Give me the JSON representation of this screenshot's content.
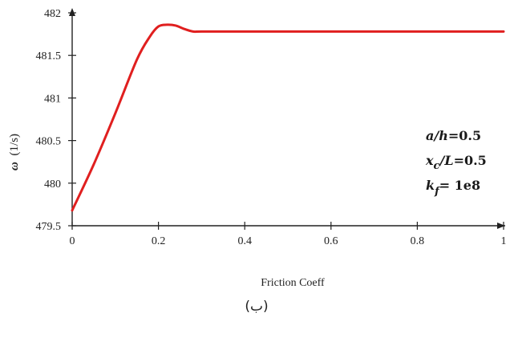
{
  "chart_data": {
    "type": "line",
    "xlabel": "Friction Coeff",
    "ylabel": {
      "symbol": "ω",
      "unit": "(1/s)"
    },
    "xlim": [
      0,
      1
    ],
    "ylim": [
      479.5,
      482
    ],
    "xticks": [
      "0",
      "0.2",
      "0.4",
      "0.6",
      "0.8",
      "1"
    ],
    "xtick_values": [
      0,
      0.2,
      0.4,
      0.6,
      0.8,
      1
    ],
    "yticks": [
      "479.5",
      "480",
      "480.5",
      "481",
      "481.5",
      "482"
    ],
    "ytick_values": [
      479.5,
      480,
      480.5,
      481,
      481.5,
      482
    ],
    "grid": false,
    "series": [
      {
        "color": "#e01f1f",
        "x": [
          0,
          0.05,
          0.1,
          0.15,
          0.18,
          0.2,
          0.22,
          0.24,
          0.26,
          0.28,
          0.3,
          0.4,
          0.5,
          0.6,
          0.7,
          0.8,
          0.9,
          1
        ],
        "y": [
          479.68,
          480.22,
          480.82,
          481.45,
          481.72,
          481.84,
          481.86,
          481.85,
          481.81,
          481.78,
          481.78,
          481.78,
          481.78,
          481.78,
          481.78,
          481.78,
          481.78,
          481.78
        ]
      }
    ],
    "annotations": {
      "line1": {
        "var": "a/h",
        "value": "=0.5"
      },
      "line2": {
        "var": "x",
        "sub": "c",
        "rest": "/L",
        "value": "=0.5"
      },
      "line3": {
        "var": "k",
        "sub": "f",
        "value": "= 1e8"
      }
    }
  },
  "caption": "(ب)"
}
